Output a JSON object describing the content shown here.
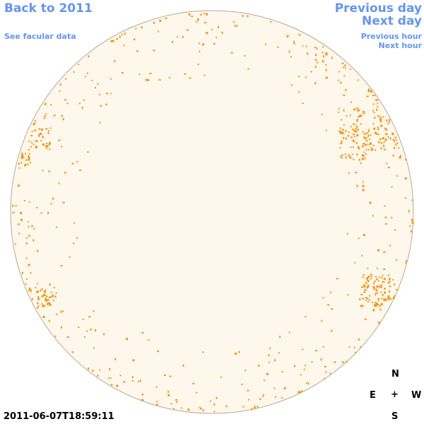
{
  "nav": {
    "back": "Back to 2011",
    "facular": "See facular data",
    "previous_day": "Previous day",
    "next_day": "Next day",
    "previous_hour": "Previous hour",
    "next_hour": "Next hour"
  },
  "timestamp": "2011-06-07T18:59:11",
  "compass": {
    "north": "N",
    "east": "E",
    "center": "+",
    "west": "W",
    "south": "S"
  },
  "colors": {
    "link": "#6495ed",
    "disk_fill": "#fdf7ec",
    "disk_edge": "#b8a89a",
    "feature": "#f0960f"
  }
}
